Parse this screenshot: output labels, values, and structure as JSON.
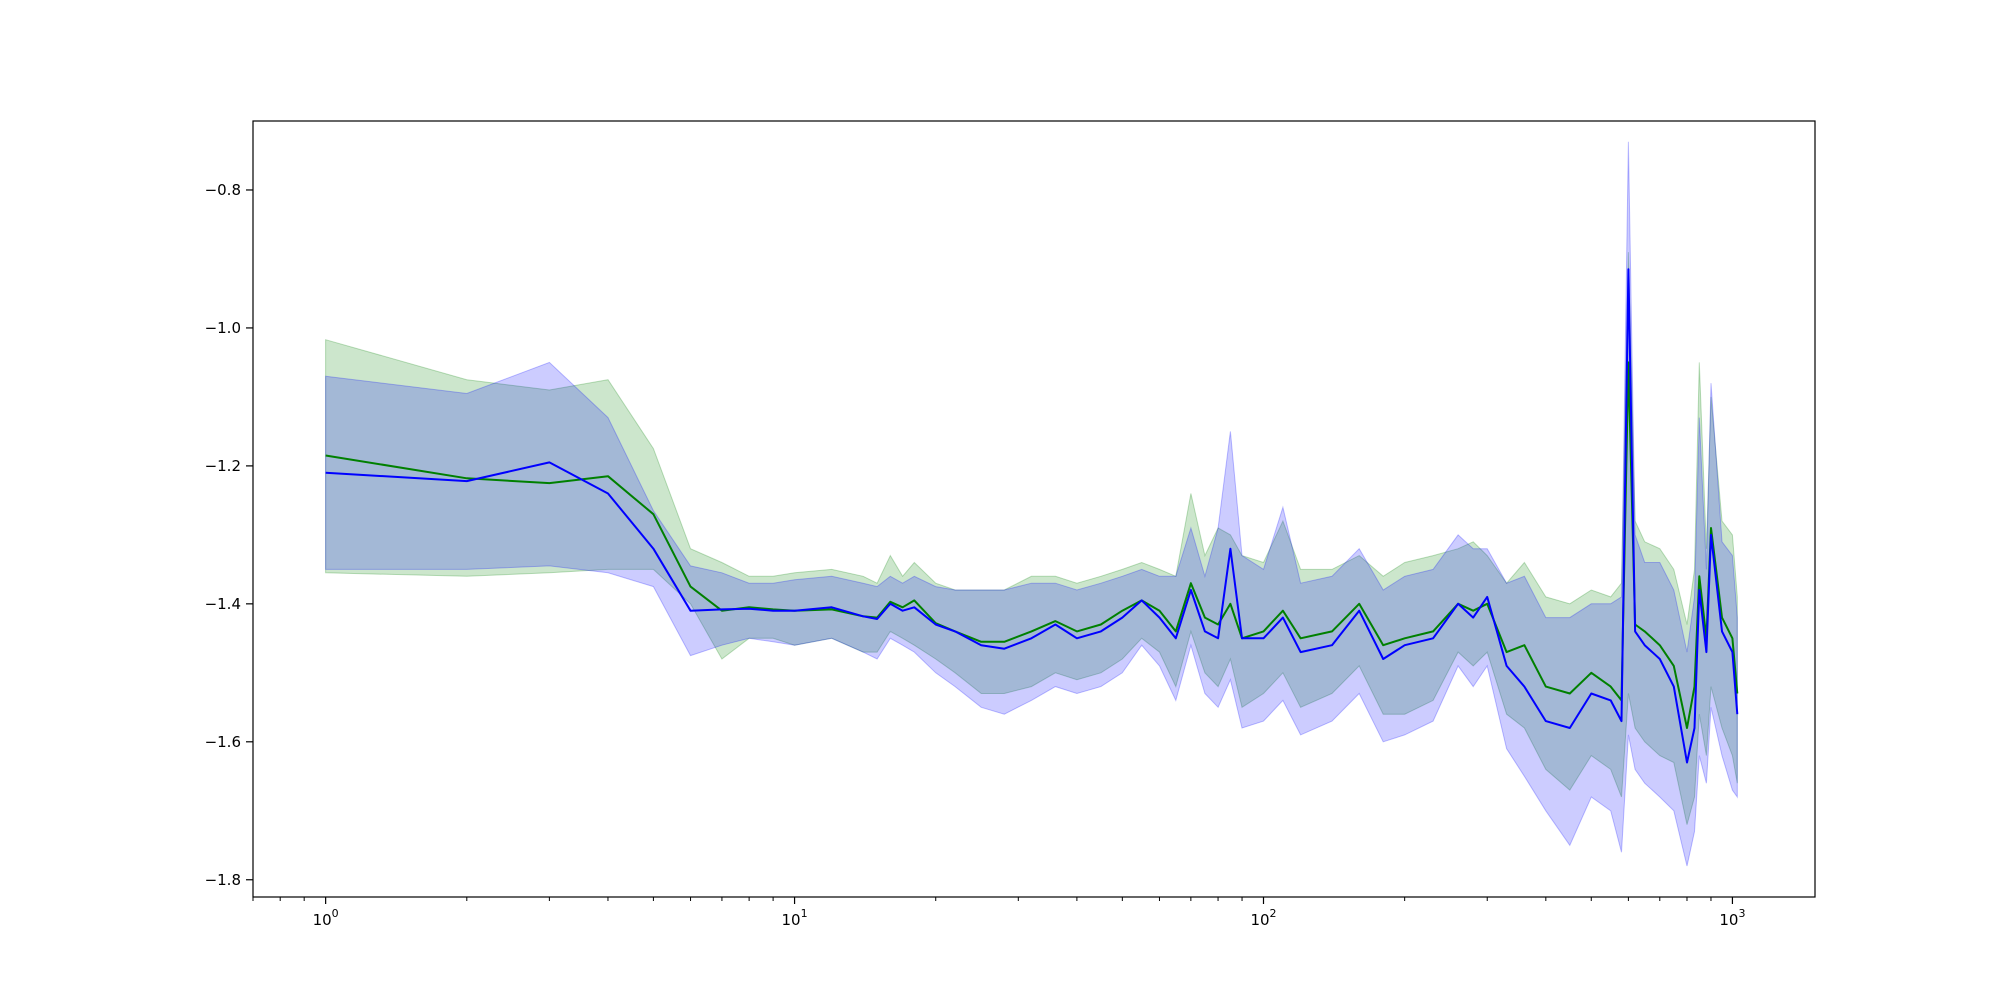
{
  "chart_data": {
    "type": "line",
    "title": "",
    "xlabel": "",
    "ylabel": "",
    "xscale": "log",
    "xlim": [
      0.7,
      1500
    ],
    "ylim": [
      -1.825,
      -0.7
    ],
    "grid": false,
    "legend": "none",
    "x_ticks": [
      {
        "value": 1,
        "base": "10",
        "exp": "0"
      },
      {
        "value": 10,
        "base": "10",
        "exp": "1"
      },
      {
        "value": 100,
        "base": "10",
        "exp": "2"
      },
      {
        "value": 1000,
        "base": "10",
        "exp": "3"
      }
    ],
    "y_ticks": [
      {
        "value": -0.8,
        "label": "−0.8"
      },
      {
        "value": -1.0,
        "label": "−1.0"
      },
      {
        "value": -1.2,
        "label": "−1.2"
      },
      {
        "value": -1.4,
        "label": "−1.4"
      },
      {
        "value": -1.6,
        "label": "−1.6"
      },
      {
        "value": -1.8,
        "label": "−1.8"
      }
    ],
    "series": [
      {
        "color": "#008000",
        "band_color": "#008000",
        "x": [
          1,
          2,
          3,
          4,
          5,
          6,
          7,
          8,
          9,
          10,
          12,
          14,
          15,
          16,
          17,
          18,
          20,
          22,
          25,
          28,
          32,
          36,
          40,
          45,
          50,
          55,
          60,
          65,
          70,
          75,
          80,
          85,
          90,
          100,
          110,
          120,
          140,
          160,
          180,
          200,
          230,
          260,
          280,
          300,
          330,
          360,
          400,
          450,
          500,
          550,
          580,
          600,
          620,
          650,
          700,
          750,
          800,
          830,
          850,
          880,
          900,
          950,
          1000,
          1024
        ],
        "y": [
          -1.185,
          -1.218,
          -1.225,
          -1.215,
          -1.27,
          -1.375,
          -1.41,
          -1.405,
          -1.408,
          -1.41,
          -1.408,
          -1.418,
          -1.42,
          -1.397,
          -1.405,
          -1.395,
          -1.428,
          -1.44,
          -1.455,
          -1.455,
          -1.44,
          -1.425,
          -1.44,
          -1.43,
          -1.41,
          -1.395,
          -1.41,
          -1.44,
          -1.37,
          -1.42,
          -1.43,
          -1.4,
          -1.45,
          -1.44,
          -1.41,
          -1.45,
          -1.44,
          -1.4,
          -1.46,
          -1.45,
          -1.44,
          -1.4,
          -1.41,
          -1.4,
          -1.47,
          -1.46,
          -1.52,
          -1.53,
          -1.5,
          -1.52,
          -1.54,
          -1.05,
          -1.43,
          -1.44,
          -1.46,
          -1.49,
          -1.58,
          -1.52,
          -1.36,
          -1.45,
          -1.29,
          -1.42,
          -1.45,
          -1.53
        ],
        "lower": [
          -1.355,
          -1.36,
          -1.355,
          -1.35,
          -1.35,
          -1.4,
          -1.48,
          -1.45,
          -1.45,
          -1.46,
          -1.45,
          -1.47,
          -1.47,
          -1.44,
          -1.45,
          -1.46,
          -1.48,
          -1.5,
          -1.53,
          -1.53,
          -1.52,
          -1.5,
          -1.51,
          -1.5,
          -1.48,
          -1.45,
          -1.47,
          -1.52,
          -1.44,
          -1.5,
          -1.52,
          -1.48,
          -1.55,
          -1.53,
          -1.5,
          -1.55,
          -1.53,
          -1.49,
          -1.56,
          -1.56,
          -1.54,
          -1.47,
          -1.49,
          -1.47,
          -1.56,
          -1.58,
          -1.64,
          -1.67,
          -1.62,
          -1.64,
          -1.68,
          -1.53,
          -1.58,
          -1.6,
          -1.62,
          -1.63,
          -1.72,
          -1.68,
          -1.56,
          -1.62,
          -1.52,
          -1.58,
          -1.62,
          -1.66
        ],
        "upper": [
          -1.017,
          -1.075,
          -1.09,
          -1.075,
          -1.175,
          -1.32,
          -1.34,
          -1.36,
          -1.36,
          -1.355,
          -1.35,
          -1.36,
          -1.37,
          -1.33,
          -1.36,
          -1.34,
          -1.37,
          -1.38,
          -1.38,
          -1.38,
          -1.36,
          -1.36,
          -1.37,
          -1.36,
          -1.35,
          -1.34,
          -1.35,
          -1.36,
          -1.24,
          -1.33,
          -1.29,
          -1.3,
          -1.33,
          -1.34,
          -1.28,
          -1.35,
          -1.35,
          -1.33,
          -1.36,
          -1.34,
          -1.33,
          -1.32,
          -1.31,
          -1.33,
          -1.37,
          -1.34,
          -1.39,
          -1.4,
          -1.38,
          -1.39,
          -1.37,
          -0.89,
          -1.28,
          -1.31,
          -1.32,
          -1.35,
          -1.43,
          -1.35,
          -1.05,
          -1.32,
          -1.1,
          -1.28,
          -1.3,
          -1.39
        ]
      },
      {
        "color": "#0000ff",
        "band_color": "#0000ff",
        "x": [
          1,
          2,
          3,
          4,
          5,
          6,
          7,
          8,
          9,
          10,
          12,
          14,
          15,
          16,
          17,
          18,
          20,
          22,
          25,
          28,
          32,
          36,
          40,
          45,
          50,
          55,
          60,
          65,
          70,
          75,
          80,
          85,
          90,
          100,
          110,
          120,
          140,
          160,
          180,
          200,
          230,
          260,
          280,
          300,
          330,
          360,
          400,
          450,
          500,
          550,
          580,
          600,
          620,
          650,
          700,
          750,
          800,
          830,
          850,
          880,
          900,
          950,
          1000,
          1024
        ],
        "y": [
          -1.21,
          -1.222,
          -1.195,
          -1.24,
          -1.32,
          -1.41,
          -1.408,
          -1.407,
          -1.41,
          -1.41,
          -1.405,
          -1.418,
          -1.422,
          -1.4,
          -1.41,
          -1.405,
          -1.43,
          -1.44,
          -1.46,
          -1.465,
          -1.45,
          -1.43,
          -1.45,
          -1.44,
          -1.42,
          -1.395,
          -1.42,
          -1.45,
          -1.38,
          -1.44,
          -1.45,
          -1.32,
          -1.45,
          -1.45,
          -1.42,
          -1.47,
          -1.46,
          -1.41,
          -1.48,
          -1.46,
          -1.45,
          -1.4,
          -1.42,
          -1.39,
          -1.49,
          -1.52,
          -1.57,
          -1.58,
          -1.53,
          -1.54,
          -1.57,
          -0.915,
          -1.44,
          -1.46,
          -1.48,
          -1.52,
          -1.63,
          -1.58,
          -1.38,
          -1.47,
          -1.3,
          -1.44,
          -1.47,
          -1.56
        ],
        "lower": [
          -1.35,
          -1.35,
          -1.345,
          -1.355,
          -1.375,
          -1.475,
          -1.46,
          -1.45,
          -1.455,
          -1.46,
          -1.45,
          -1.47,
          -1.48,
          -1.45,
          -1.46,
          -1.47,
          -1.5,
          -1.52,
          -1.55,
          -1.56,
          -1.54,
          -1.52,
          -1.53,
          -1.52,
          -1.5,
          -1.46,
          -1.49,
          -1.54,
          -1.46,
          -1.53,
          -1.55,
          -1.51,
          -1.58,
          -1.57,
          -1.54,
          -1.59,
          -1.57,
          -1.53,
          -1.6,
          -1.59,
          -1.57,
          -1.49,
          -1.52,
          -1.49,
          -1.61,
          -1.65,
          -1.7,
          -1.75,
          -1.68,
          -1.7,
          -1.76,
          -1.59,
          -1.64,
          -1.66,
          -1.68,
          -1.7,
          -1.78,
          -1.73,
          -1.62,
          -1.66,
          -1.55,
          -1.62,
          -1.67,
          -1.68
        ],
        "upper": [
          -1.07,
          -1.095,
          -1.05,
          -1.13,
          -1.265,
          -1.345,
          -1.355,
          -1.37,
          -1.37,
          -1.365,
          -1.36,
          -1.37,
          -1.375,
          -1.36,
          -1.37,
          -1.36,
          -1.375,
          -1.38,
          -1.38,
          -1.38,
          -1.37,
          -1.37,
          -1.38,
          -1.37,
          -1.36,
          -1.35,
          -1.36,
          -1.36,
          -1.29,
          -1.36,
          -1.29,
          -1.15,
          -1.33,
          -1.35,
          -1.26,
          -1.37,
          -1.36,
          -1.32,
          -1.38,
          -1.36,
          -1.35,
          -1.3,
          -1.32,
          -1.32,
          -1.37,
          -1.36,
          -1.42,
          -1.42,
          -1.4,
          -1.4,
          -1.39,
          -0.73,
          -1.3,
          -1.34,
          -1.34,
          -1.38,
          -1.47,
          -1.39,
          -1.13,
          -1.35,
          -1.08,
          -1.31,
          -1.33,
          -1.42
        ]
      }
    ]
  }
}
